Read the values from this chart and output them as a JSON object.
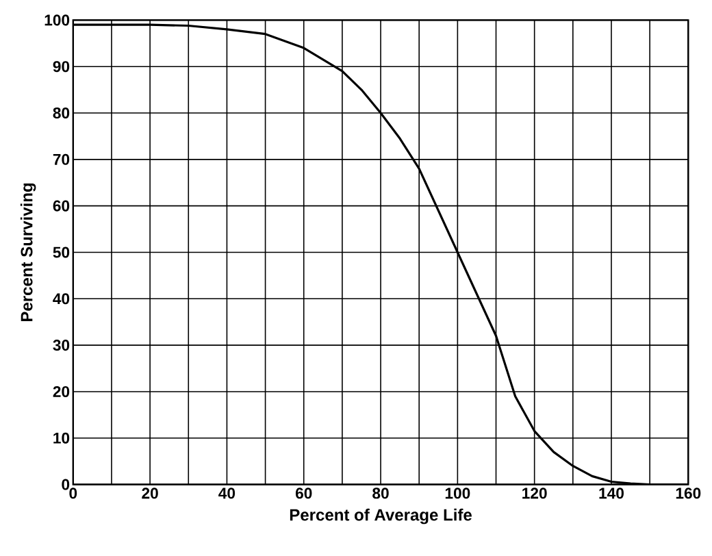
{
  "chart_data": {
    "type": "line",
    "xlabel": "Percent of Average Life",
    "ylabel": "Percent Surviving",
    "x": [
      0,
      10,
      20,
      30,
      40,
      50,
      60,
      65,
      70,
      75,
      80,
      85,
      90,
      95,
      100,
      105,
      110,
      115,
      120,
      125,
      130,
      135,
      140,
      145,
      150,
      160
    ],
    "series": [
      {
        "color": "#000000",
        "values": [
          99,
          99,
          99,
          98.8,
          98,
          97,
          94,
          91.5,
          89,
          85,
          80,
          74.5,
          68,
          59,
          50,
          41,
          32,
          19,
          11.5,
          7,
          4,
          1.8,
          0.6,
          0.2,
          0,
          0
        ]
      }
    ],
    "xlim": [
      0,
      160
    ],
    "ylim": [
      0,
      100
    ],
    "xticks": [
      0,
      {
        "value": 10,
        "label": null
      },
      20,
      {
        "value": 30,
        "label": null
      },
      40,
      {
        "value": 50,
        "label": null
      },
      60,
      {
        "value": 70,
        "label": null
      },
      80,
      {
        "value": 90,
        "label": null
      },
      100,
      {
        "value": 110,
        "label": null
      },
      120,
      {
        "value": 130,
        "label": null
      },
      140,
      {
        "value": 150,
        "label": null
      },
      160
    ],
    "yticks": [
      0,
      10,
      20,
      30,
      40,
      50,
      60,
      70,
      80,
      90,
      100
    ],
    "grid": true,
    "marker": "none",
    "line_style": "solid"
  }
}
